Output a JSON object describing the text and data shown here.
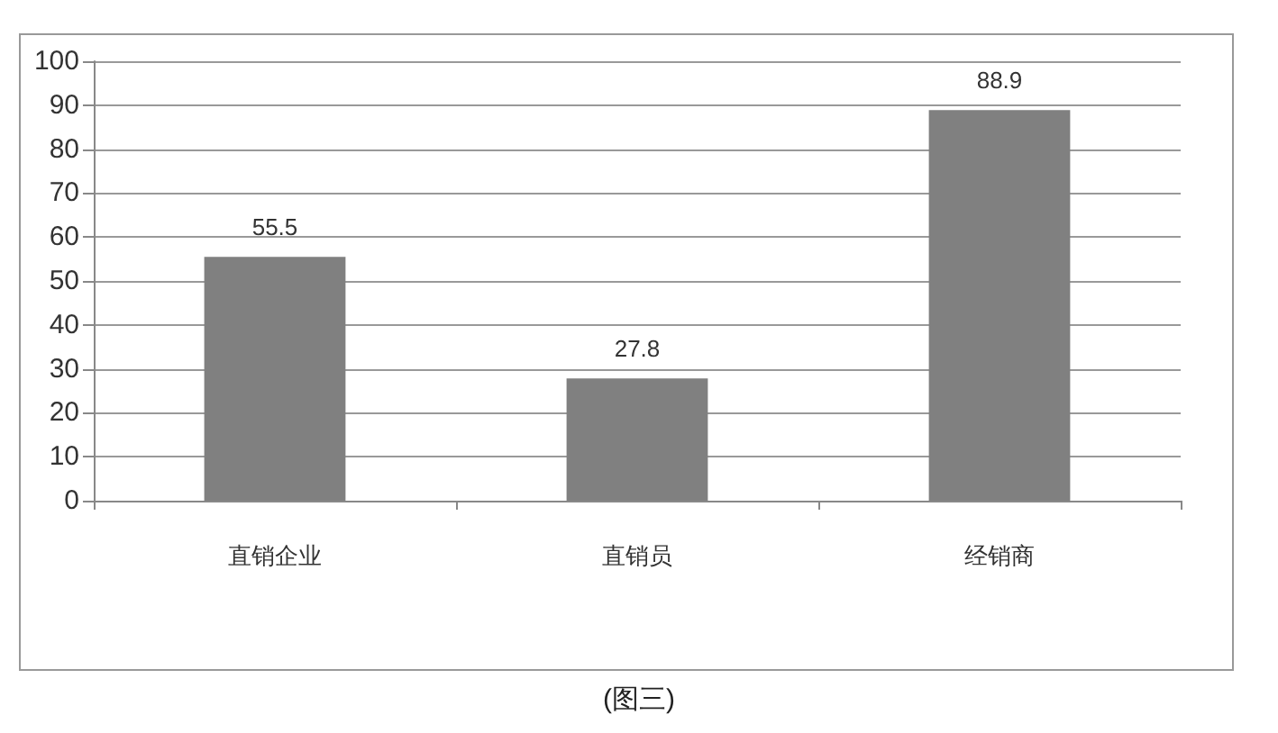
{
  "chart_data": {
    "type": "bar",
    "categories": [
      "直销企业",
      "直销员",
      "经销商"
    ],
    "values": [
      55.5,
      27.8,
      88.9
    ],
    "color": "#808080",
    "ylim": [
      0,
      100
    ],
    "yticks": [
      0,
      10,
      20,
      30,
      40,
      50,
      60,
      70,
      80,
      90,
      100
    ],
    "grid": "y",
    "data_labels": true,
    "annotations": [
      "(图三)"
    ]
  }
}
